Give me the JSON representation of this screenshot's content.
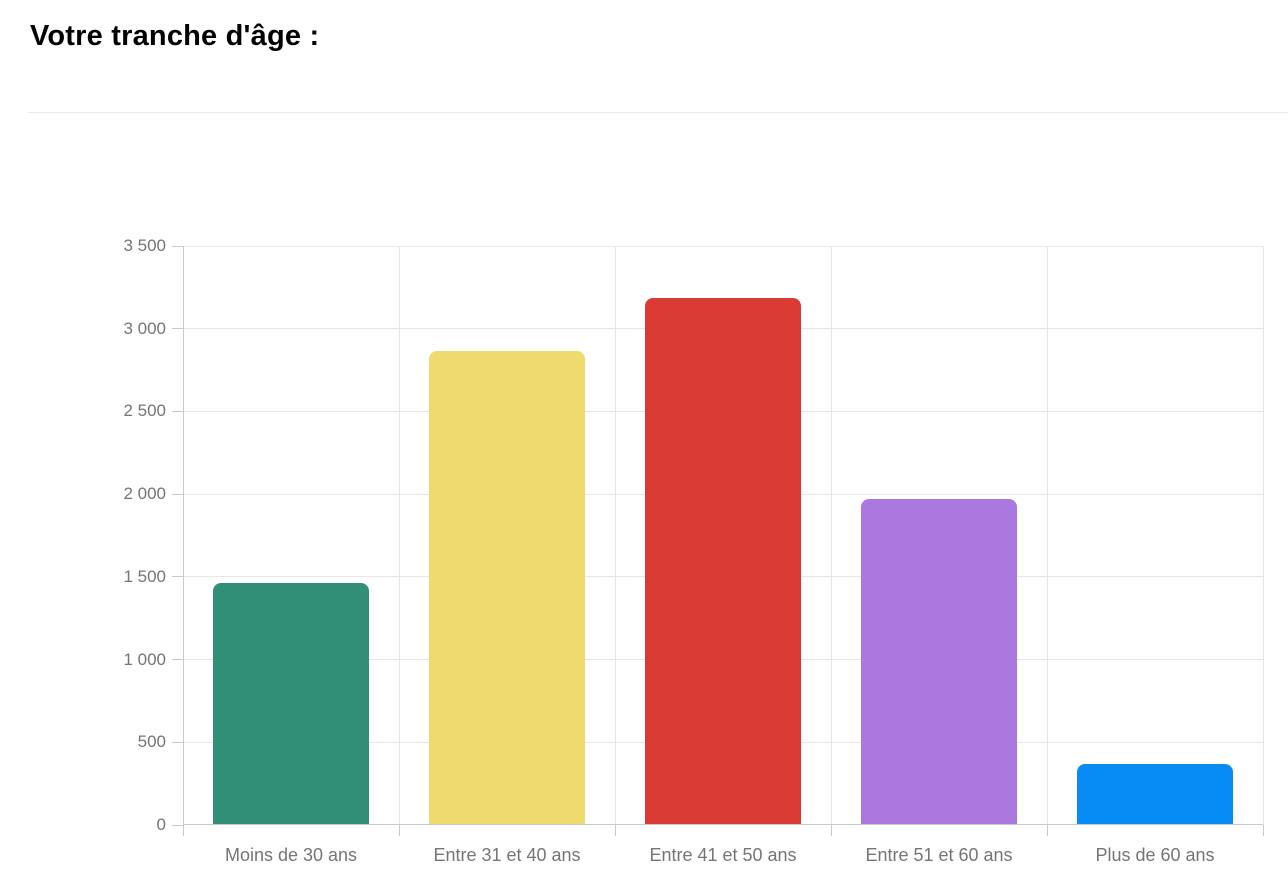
{
  "header": {
    "title": "Votre tranche d'âge :"
  },
  "chart_data": {
    "type": "bar",
    "title": "Votre tranche d'âge :",
    "categories": [
      "Moins de 30 ans",
      "Entre 31 et 40 ans",
      "Entre 41 et 50 ans",
      "Entre 51 et 60 ans",
      "Plus de 60 ans"
    ],
    "values": [
      1460,
      2865,
      3185,
      1970,
      370
    ],
    "bar_colors": [
      "#318f78",
      "#efdb6d",
      "#d93a34",
      "#ab78e0",
      "#078cf5"
    ],
    "xlabel": "",
    "ylabel": "",
    "ylim": [
      0,
      3500
    ],
    "ytick_interval": 500,
    "ytick_labels": [
      "0",
      "500",
      "1 000",
      "1 500",
      "2 000",
      "2 500",
      "3 000",
      "3 500"
    ],
    "grid": true,
    "legend_position": "none",
    "grid_color": "#e6e6e6",
    "axis_color": "#c9c9c9",
    "label_color": "#757575"
  }
}
